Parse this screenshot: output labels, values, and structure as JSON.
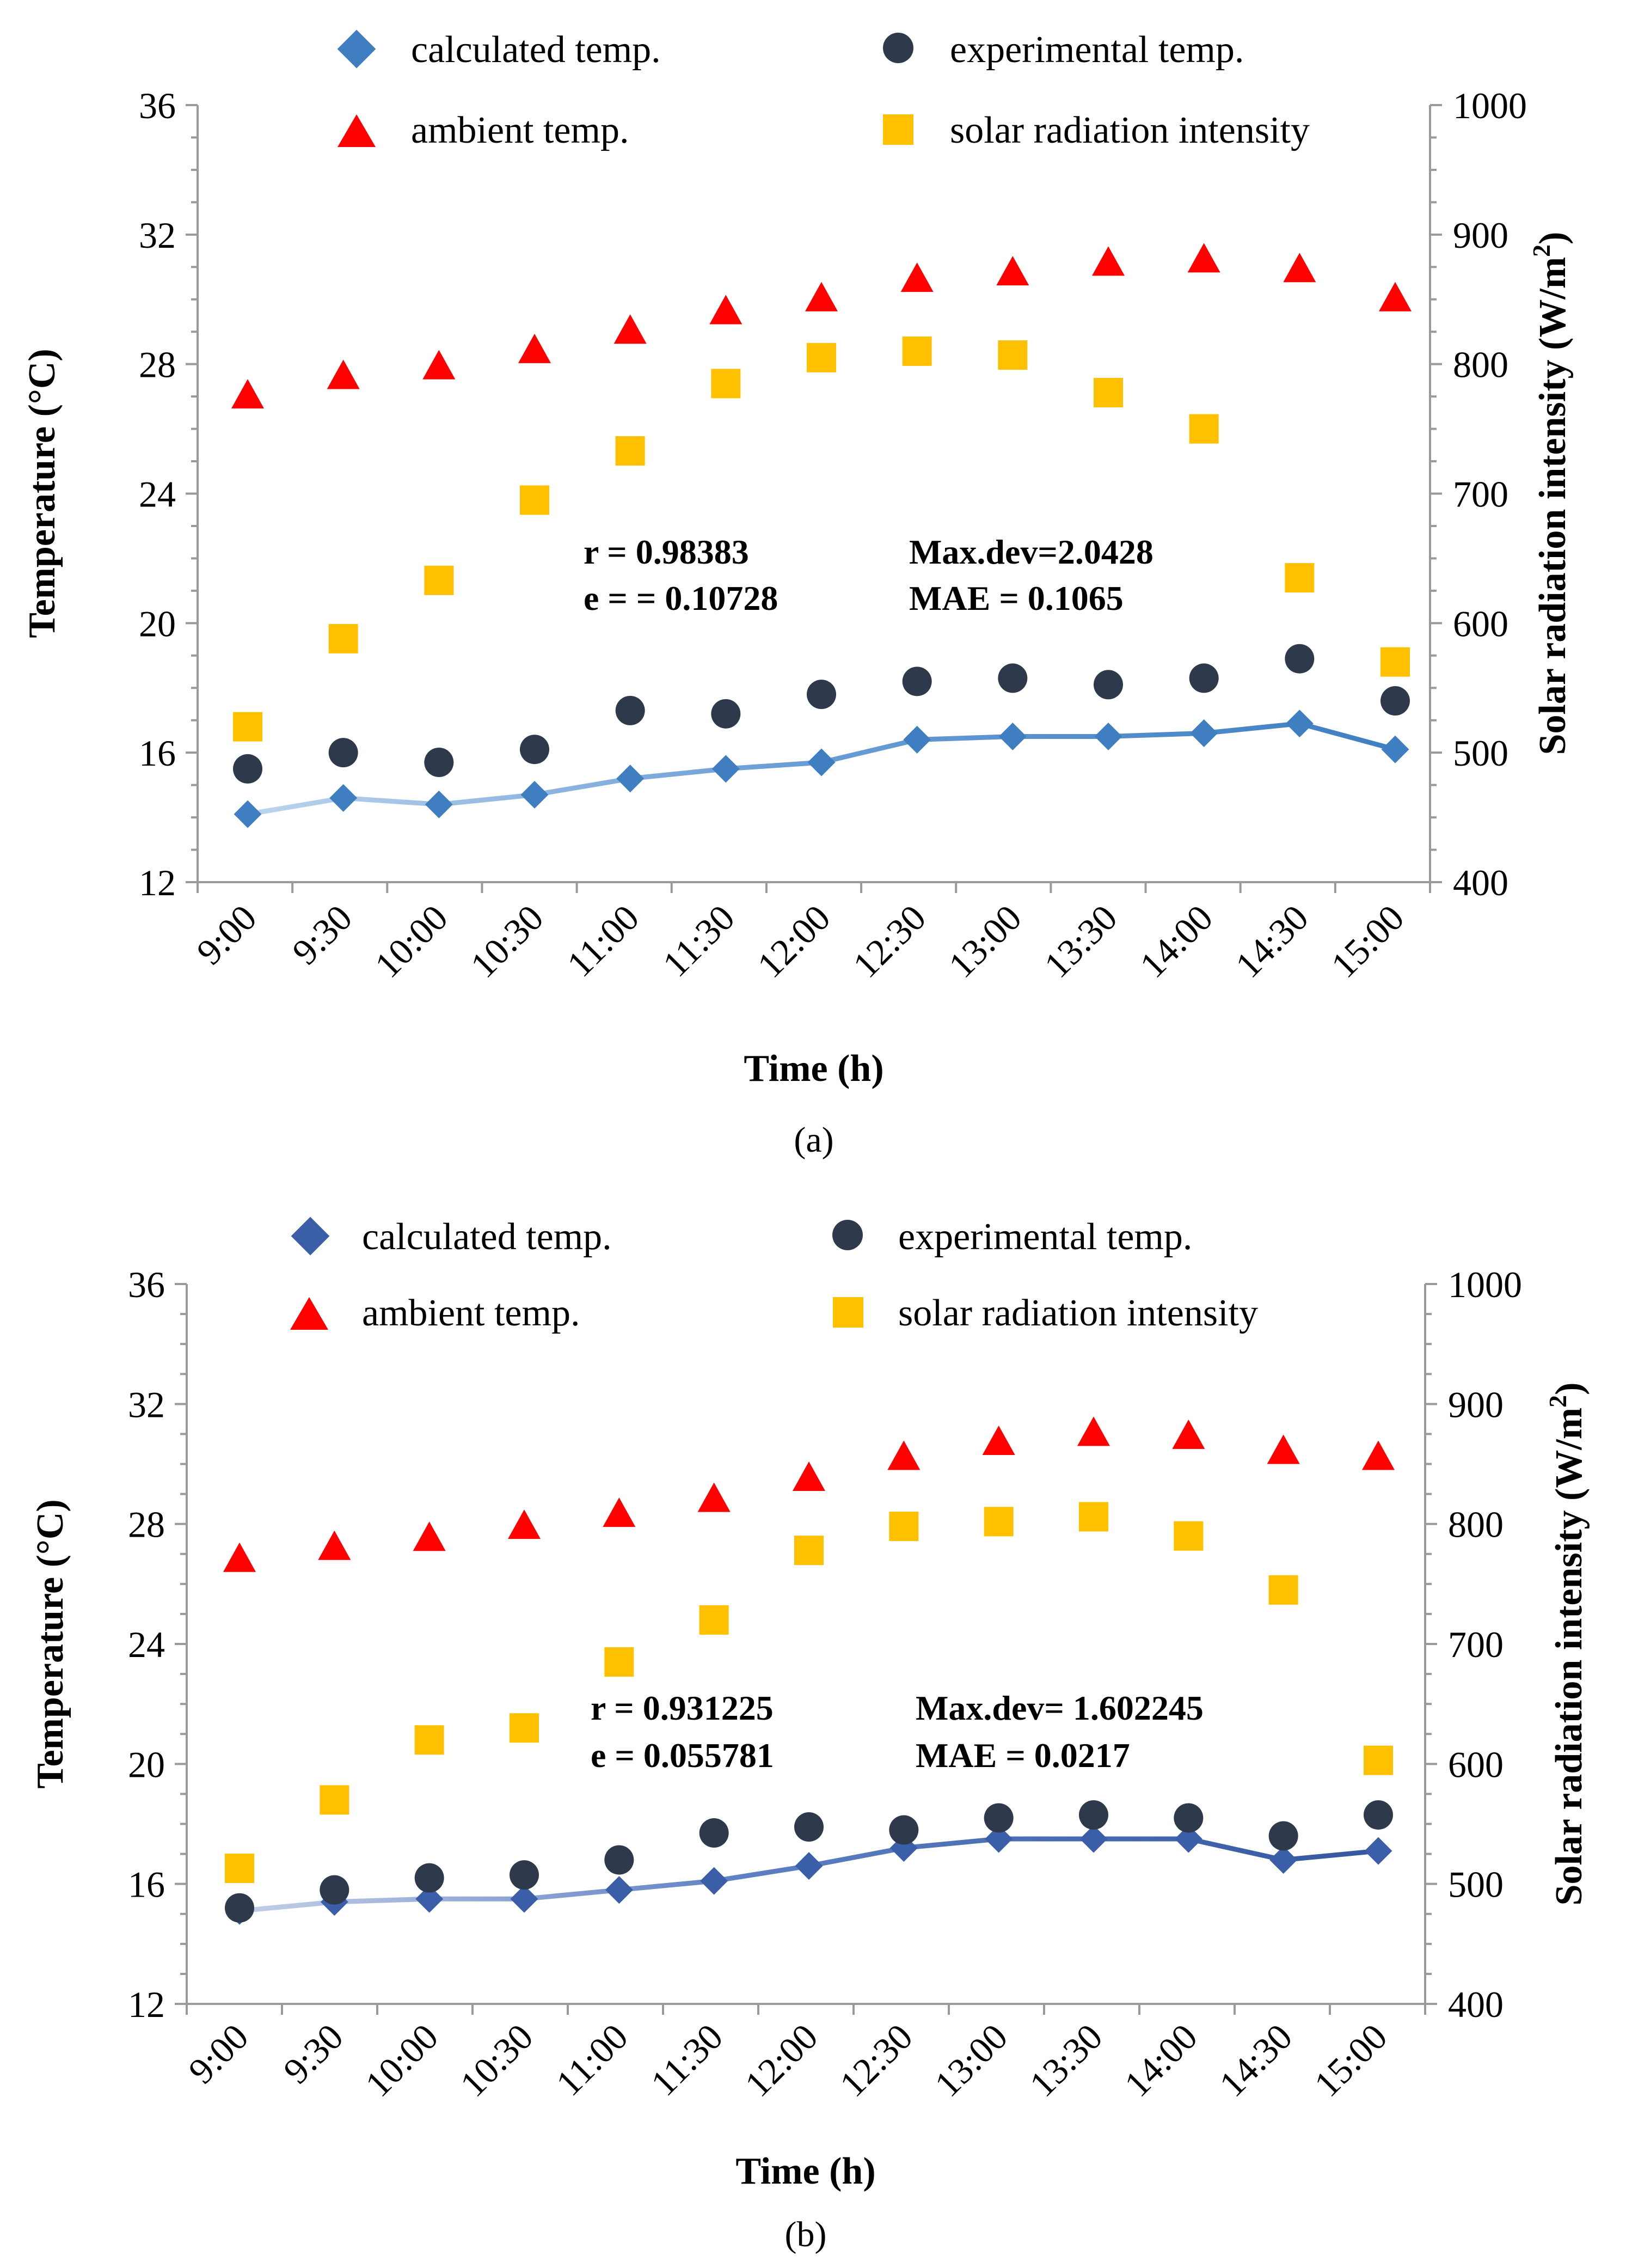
{
  "chart_data": [
    {
      "type": "line+scatter",
      "caption": "(a)",
      "xlabel": "Time (h)",
      "ylabel": "Temperature (°C)",
      "y2label": "Solar radiation intensity (W/m",
      "y2label_sup": "2",
      "y2label_end": ")",
      "ylim": [
        12,
        36
      ],
      "y2lim": [
        400,
        1000
      ],
      "y_ticks": [
        "12",
        "16",
        "20",
        "24",
        "28",
        "32",
        "36"
      ],
      "y2_ticks": [
        "400",
        "500",
        "600",
        "700",
        "800",
        "900",
        "1000"
      ],
      "categories": [
        "9:00",
        "9:30",
        "10:00",
        "10:30",
        "11:00",
        "11:30",
        "12:00",
        "12:30",
        "13:00",
        "13:30",
        "14:00",
        "14:30",
        "15:00"
      ],
      "series": [
        {
          "name": "calculated temp.",
          "kind": "line",
          "axis": "left",
          "color": "#3f7fc1",
          "values": [
            14.1,
            14.6,
            14.4,
            14.7,
            15.2,
            15.5,
            15.7,
            16.4,
            16.5,
            16.5,
            16.6,
            16.9,
            16.1
          ]
        },
        {
          "name": "experimental temp.",
          "kind": "circle",
          "axis": "left",
          "color": "#2e3a4b",
          "values": [
            15.5,
            16.0,
            15.7,
            16.1,
            17.3,
            17.2,
            17.8,
            18.2,
            18.3,
            18.1,
            18.3,
            18.9,
            17.6
          ]
        },
        {
          "name": "ambient temp.",
          "kind": "triangle",
          "axis": "left",
          "color": "#ff0000",
          "values": [
            27.0,
            27.6,
            27.9,
            28.4,
            29.0,
            29.6,
            30.0,
            30.6,
            30.8,
            31.1,
            31.2,
            30.9,
            30.0
          ]
        },
        {
          "name": "solar radiation intensity",
          "kind": "square",
          "axis": "right",
          "color": "#ffc000",
          "values": [
            520,
            588,
            633,
            695,
            733,
            785,
            805,
            810,
            807,
            778,
            750,
            635,
            570
          ]
        }
      ],
      "annotations": {
        "r": "r = 0.98383",
        "e": "e = = 0.10728",
        "maxdev": "Max.dev=2.0428",
        "mae": "MAE = 0.1065"
      }
    },
    {
      "type": "line+scatter",
      "caption": "(b)",
      "xlabel": "Time (h)",
      "ylabel": "Temperature (°C)",
      "y2label": "Solar radiation intensity (W/m",
      "y2label_sup": "2",
      "y2label_end": ")",
      "ylim": [
        12,
        36
      ],
      "y2lim": [
        400,
        1000
      ],
      "y_ticks": [
        "12",
        "16",
        "20",
        "24",
        "28",
        "32",
        "36"
      ],
      "y2_ticks": [
        "400",
        "500",
        "600",
        "700",
        "800",
        "900",
        "1000"
      ],
      "categories": [
        "9:00",
        "9:30",
        "10:00",
        "10:30",
        "11:00",
        "11:30",
        "12:00",
        "12:30",
        "13:00",
        "13:30",
        "14:00",
        "14:30",
        "15:00"
      ],
      "series": [
        {
          "name": "calculated temp.",
          "kind": "line",
          "axis": "left",
          "color": "#3a5ea8",
          "values": [
            15.1,
            15.4,
            15.5,
            15.5,
            15.8,
            16.1,
            16.6,
            17.2,
            17.5,
            17.5,
            17.5,
            16.8,
            17.1
          ]
        },
        {
          "name": "experimental temp.",
          "kind": "circle",
          "axis": "left",
          "color": "#2e3a4b",
          "values": [
            15.2,
            15.8,
            16.2,
            16.3,
            16.8,
            17.7,
            17.9,
            17.8,
            18.2,
            18.3,
            18.2,
            17.6,
            18.3
          ]
        },
        {
          "name": "ambient temp.",
          "kind": "triangle",
          "axis": "left",
          "color": "#ff0000",
          "values": [
            26.8,
            27.2,
            27.5,
            27.9,
            28.3,
            28.8,
            29.5,
            30.2,
            30.7,
            31.0,
            30.9,
            30.4,
            30.2
          ]
        },
        {
          "name": "solar radiation intensity",
          "kind": "square",
          "axis": "right",
          "color": "#ffc000",
          "values": [
            513,
            570,
            620,
            630,
            685,
            720,
            778,
            798,
            802,
            806,
            790,
            745,
            603
          ]
        }
      ],
      "annotations": {
        "r": "r = 0.931225",
        "e": "e = 0.055781",
        "maxdev": "Max.dev= 1.602245",
        "mae": "MAE = 0.0217"
      }
    }
  ]
}
